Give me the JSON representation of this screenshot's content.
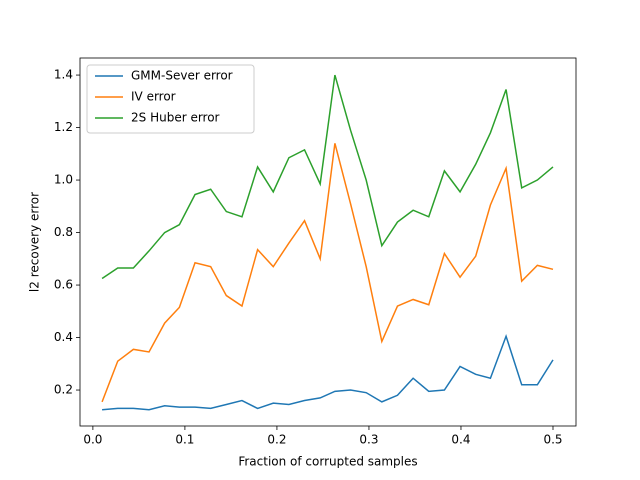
{
  "chart_data": {
    "type": "line",
    "xlabel": "Fraction of corrupted samples",
    "ylabel": "l2 recovery error",
    "x": [
      0.01,
      0.027,
      0.044,
      0.061,
      0.078,
      0.094,
      0.111,
      0.128,
      0.145,
      0.162,
      0.179,
      0.196,
      0.213,
      0.23,
      0.247,
      0.263,
      0.28,
      0.297,
      0.314,
      0.331,
      0.348,
      0.365,
      0.382,
      0.399,
      0.416,
      0.432,
      0.449,
      0.466,
      0.483,
      0.5
    ],
    "series": [
      {
        "name": "GMM-Sever error",
        "color": "#1f77b4",
        "values": [
          0.125,
          0.13,
          0.13,
          0.125,
          0.14,
          0.135,
          0.135,
          0.13,
          0.145,
          0.16,
          0.13,
          0.15,
          0.145,
          0.16,
          0.17,
          0.195,
          0.2,
          0.19,
          0.155,
          0.18,
          0.245,
          0.195,
          0.2,
          0.29,
          0.26,
          0.245,
          0.405,
          0.22,
          0.22,
          0.315
        ]
      },
      {
        "name": "IV error",
        "color": "#ff7f0e",
        "values": [
          0.155,
          0.31,
          0.355,
          0.345,
          0.455,
          0.515,
          0.685,
          0.67,
          0.56,
          0.52,
          0.735,
          0.67,
          0.76,
          0.845,
          0.7,
          1.14,
          0.91,
          0.67,
          0.385,
          0.52,
          0.545,
          0.525,
          0.72,
          0.63,
          0.71,
          0.905,
          1.045,
          0.615,
          0.675,
          0.66
        ]
      },
      {
        "name": "2S Huber error",
        "color": "#2ca02c",
        "values": [
          0.625,
          0.665,
          0.665,
          0.73,
          0.8,
          0.83,
          0.945,
          0.965,
          0.88,
          0.86,
          1.05,
          0.955,
          1.085,
          1.115,
          0.985,
          1.4,
          1.19,
          1.0,
          0.75,
          0.84,
          0.885,
          0.86,
          1.035,
          0.955,
          1.06,
          1.18,
          1.345,
          0.97,
          1.0,
          1.05
        ]
      }
    ],
    "xlim": [
      -0.014,
      0.525
    ],
    "ylim": [
      0.063,
      1.465
    ],
    "xticks": [
      {
        "value": 0,
        "label": "0.0"
      },
      0.1,
      0.2,
      0.3,
      0.4,
      0.5
    ],
    "yticks": [
      0.2,
      0.4,
      0.6,
      0.8,
      {
        "value": 1,
        "label": "1.0"
      },
      1.2,
      1.4
    ],
    "legend": "upper left"
  }
}
